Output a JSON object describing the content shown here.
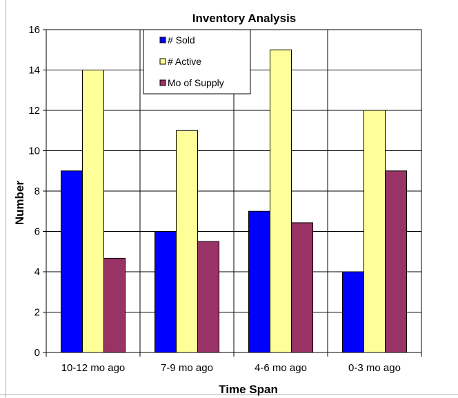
{
  "chart_data": {
    "type": "bar",
    "title": "Inventory Analysis",
    "xlabel": "Time Span",
    "ylabel": "Number",
    "categories": [
      "10-12 mo ago",
      "7-9 mo ago",
      "4-6 mo ago",
      "0-3 mo ago"
    ],
    "series": [
      {
        "name": "# Sold",
        "color": "#0000ff",
        "values": [
          9,
          6,
          7,
          4
        ]
      },
      {
        "name": "# Active",
        "color": "#ffff99",
        "values": [
          14,
          11,
          15,
          12
        ]
      },
      {
        "name": "Mo of Supply",
        "color": "#993366",
        "values": [
          4.67,
          5.5,
          6.43,
          9
        ]
      }
    ],
    "ylim": [
      0,
      16
    ],
    "yticks": [
      "0",
      "2",
      "4",
      "6",
      "8",
      "10",
      "12",
      "14",
      "16"
    ],
    "grid": true,
    "legend_position": "top-center"
  }
}
